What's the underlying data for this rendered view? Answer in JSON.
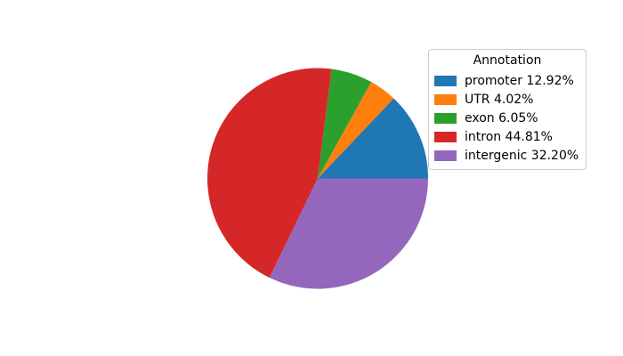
{
  "chart_data": {
    "type": "pie",
    "title": "",
    "legend_title": "Annotation",
    "legend_position": "upper right",
    "start_angle": 0,
    "direction": "counterclockwise",
    "unit": "%",
    "categories": [
      "promoter",
      "UTR",
      "exon",
      "intron",
      "intergenic"
    ],
    "values": [
      12.92,
      4.02,
      6.05,
      44.81,
      32.2
    ],
    "slices": [
      {
        "label": "promoter",
        "value": 12.92,
        "color": "#1f77b4",
        "legend_label": "promoter 12.92%"
      },
      {
        "label": "UTR",
        "value": 4.02,
        "color": "#ff7f0e",
        "legend_label": "UTR 4.02%"
      },
      {
        "label": "exon",
        "value": 6.05,
        "color": "#2ca02c",
        "legend_label": "exon 6.05%"
      },
      {
        "label": "intron",
        "value": 44.81,
        "color": "#d62728",
        "legend_label": "intron 44.81%"
      },
      {
        "label": "intergenic",
        "value": 32.2,
        "color": "#9467bd",
        "legend_label": "intergenic 32.20%"
      }
    ]
  },
  "colors": {
    "background": "#ffffff",
    "legend_border": "#cccccc",
    "text": "#000000"
  }
}
